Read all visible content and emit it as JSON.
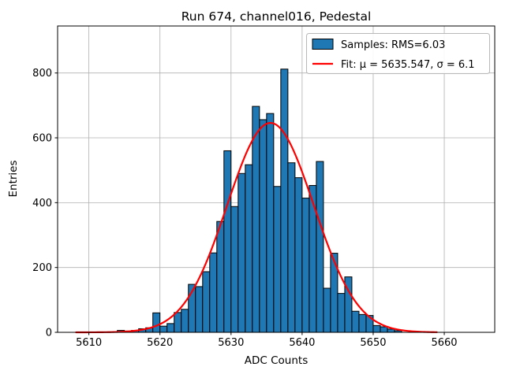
{
  "title": "Run 674, channel016, Pedestal",
  "xlabel": "ADC Counts",
  "ylabel": "Entries",
  "legend": {
    "samples_label": "Samples: RMS=6.03",
    "fit_label": "Fit: μ = 5635.547, σ = 6.1"
  },
  "colors": {
    "bar_fill": "#1f77b4",
    "bar_edge": "#000000",
    "fit_line": "#ff0000",
    "grid": "#b0b0b0",
    "axis": "#000000",
    "legend_border": "#b8b8b8",
    "background": "#ffffff"
  },
  "chart_data": {
    "type": "bar",
    "subtype": "histogram",
    "title": "Run 674, channel016, Pedestal",
    "xlabel": "ADC Counts",
    "ylabel": "Entries",
    "bin_width": 1,
    "bin_left_edges": [
      5614,
      5615,
      5616,
      5617,
      5618,
      5619,
      5620,
      5621,
      5622,
      5623,
      5624,
      5625,
      5626,
      5627,
      5628,
      5629,
      5630,
      5631,
      5632,
      5633,
      5634,
      5635,
      5636,
      5637,
      5638,
      5639,
      5640,
      5641,
      5642,
      5643,
      5644,
      5645,
      5646,
      5647,
      5648,
      5649,
      5650,
      5651,
      5652,
      5653
    ],
    "values": [
      6,
      4,
      6,
      11,
      14,
      60,
      19,
      27,
      61,
      71,
      148,
      141,
      187,
      245,
      342,
      560,
      388,
      490,
      517,
      697,
      656,
      675,
      450,
      812,
      523,
      477,
      414,
      453,
      527,
      136,
      244,
      120,
      171,
      65,
      55,
      52,
      21,
      17,
      10,
      5
    ],
    "fit": {
      "mu": 5635.547,
      "sigma": 6.1,
      "amplitude": 646,
      "x_start": 5608.2,
      "x_end": 5659.0
    },
    "rms": 6.03,
    "x_ticks": [
      5610,
      5620,
      5630,
      5640,
      5650,
      5660
    ],
    "y_ticks": [
      0,
      200,
      400,
      600,
      800
    ],
    "xlim": [
      5605.6,
      5667.1
    ],
    "ylim": [
      0,
      945
    ],
    "grid": true,
    "legend_position": "upper right"
  }
}
